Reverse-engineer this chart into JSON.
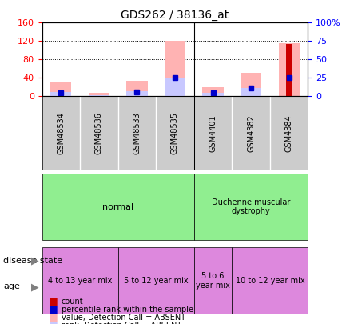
{
  "title": "GDS262 / 38136_at",
  "samples": [
    "GSM48534",
    "GSM48536",
    "GSM48533",
    "GSM48535",
    "GSM4401",
    "GSM4382",
    "GSM4384"
  ],
  "value_absent": [
    30,
    8,
    33,
    120,
    20,
    52,
    115
  ],
  "rank_absent": [
    10,
    3,
    12,
    40,
    8,
    18,
    0
  ],
  "count": [
    0,
    0,
    0,
    0,
    0,
    0,
    113
  ],
  "percentile_rank": [
    8,
    0,
    10,
    40,
    8,
    18,
    40
  ],
  "left_ylim": [
    0,
    160
  ],
  "right_ylim": [
    0,
    100
  ],
  "left_yticks": [
    0,
    40,
    80,
    120,
    160
  ],
  "right_yticks": [
    0,
    25,
    50,
    75,
    100
  ],
  "left_yticklabels": [
    "0",
    "40",
    "80",
    "120",
    "160"
  ],
  "right_yticklabels": [
    "0",
    "25",
    "50",
    "75",
    "100%"
  ],
  "color_value_absent": "#ffb3b3",
  "color_rank_absent": "#c8c8ff",
  "color_count": "#cc0000",
  "color_percentile": "#0000cc",
  "disease_state_groups": [
    {
      "label": "normal",
      "start": 0,
      "end": 4,
      "color": "#90ee90"
    },
    {
      "label": "Duchenne muscular\ndystrophy",
      "start": 4,
      "end": 7,
      "color": "#90ee90"
    }
  ],
  "age_groups": [
    {
      "label": "4 to 13 year mix",
      "start": 0,
      "end": 2,
      "color": "#dd88dd"
    },
    {
      "label": "5 to 12 year mix",
      "start": 2,
      "end": 4,
      "color": "#dd88dd"
    },
    {
      "label": "5 to 6\nyear mix",
      "start": 4,
      "end": 5,
      "color": "#dd88dd"
    },
    {
      "label": "10 to 12 year mix",
      "start": 5,
      "end": 7,
      "color": "#dd88dd"
    }
  ],
  "bar_width": 0.55,
  "background_color": "#ffffff",
  "plot_bg_color": "#ffffff",
  "grid_color": "#000000",
  "sample_box_color": "#cccccc"
}
